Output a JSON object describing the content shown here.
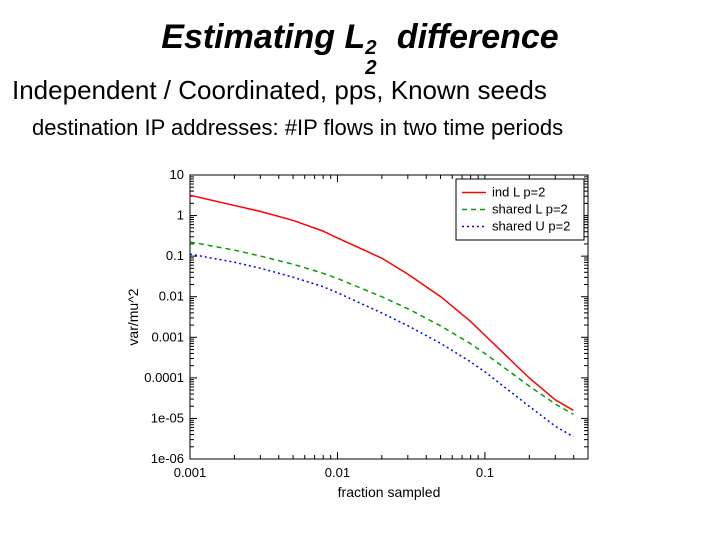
{
  "title_parts": {
    "prefix": "Estimating L",
    "sup": "2",
    "sub": "2",
    "suffix": " difference"
  },
  "subtitle": "Independent / Coordinated, pps, Known seeds",
  "subtext": "destination IP addresses: #IP flows  in two time periods",
  "chart": {
    "type": "line",
    "xlabel": "fraction sampled",
    "ylabel": "var/mu^2",
    "label_fontsize": 14,
    "tick_fontsize": 13,
    "x_scale": "log",
    "y_scale": "log",
    "xlim_log10": [
      -3,
      -0.301
    ],
    "ylim_log10": [
      -6,
      1
    ],
    "x_ticks": [
      {
        "log10": -3,
        "label": "0.001"
      },
      {
        "log10": -2,
        "label": "0.01"
      },
      {
        "log10": -1,
        "label": "0.1"
      }
    ],
    "y_ticks": [
      {
        "log10": 1,
        "label": "10"
      },
      {
        "log10": 0,
        "label": "1"
      },
      {
        "log10": -1,
        "label": "0.1"
      },
      {
        "log10": -2,
        "label": "0.01"
      },
      {
        "log10": -3,
        "label": "0.001"
      },
      {
        "log10": -4,
        "label": "0.0001"
      },
      {
        "log10": -5,
        "label": "1e-05"
      },
      {
        "log10": -6,
        "label": "1e-06"
      }
    ],
    "background_color": "#ffffff",
    "axis_color": "#000000",
    "line_width": 1.5,
    "legend": {
      "position": "top-right",
      "border_color": "#000000",
      "bg_color": "#ffffff",
      "fontsize": 13
    },
    "series": [
      {
        "name": "ind L p=2",
        "color": "#ff0000",
        "dash": "solid",
        "points_log10": [
          [
            -3.0,
            0.5
          ],
          [
            -2.7,
            0.25
          ],
          [
            -2.52,
            0.1
          ],
          [
            -2.3,
            -0.12
          ],
          [
            -2.1,
            -0.38
          ],
          [
            -2.0,
            -0.55
          ],
          [
            -1.7,
            -1.05
          ],
          [
            -1.52,
            -1.45
          ],
          [
            -1.3,
            -2.0
          ],
          [
            -1.1,
            -2.6
          ],
          [
            -1.0,
            -2.95
          ],
          [
            -0.7,
            -4.0
          ],
          [
            -0.52,
            -4.55
          ],
          [
            -0.4,
            -4.8
          ]
        ]
      },
      {
        "name": "shared L p=2",
        "color": "#00a000",
        "dash": "5,4",
        "points_log10": [
          [
            -3.0,
            -0.65
          ],
          [
            -2.7,
            -0.85
          ],
          [
            -2.52,
            -1.0
          ],
          [
            -2.3,
            -1.2
          ],
          [
            -2.1,
            -1.42
          ],
          [
            -2.0,
            -1.55
          ],
          [
            -1.7,
            -2.0
          ],
          [
            -1.52,
            -2.3
          ],
          [
            -1.3,
            -2.72
          ],
          [
            -1.1,
            -3.15
          ],
          [
            -1.0,
            -3.4
          ],
          [
            -0.7,
            -4.2
          ],
          [
            -0.52,
            -4.65
          ],
          [
            -0.4,
            -4.9
          ]
        ]
      },
      {
        "name": "shared U p=2",
        "color": "#0000ff",
        "dash": "2,3",
        "points_log10": [
          [
            -3.0,
            -0.95
          ],
          [
            -2.7,
            -1.15
          ],
          [
            -2.52,
            -1.3
          ],
          [
            -2.3,
            -1.52
          ],
          [
            -2.1,
            -1.75
          ],
          [
            -2.0,
            -1.9
          ],
          [
            -1.7,
            -2.4
          ],
          [
            -1.52,
            -2.72
          ],
          [
            -1.3,
            -3.15
          ],
          [
            -1.1,
            -3.6
          ],
          [
            -1.0,
            -3.85
          ],
          [
            -0.7,
            -4.7
          ],
          [
            -0.52,
            -5.2
          ],
          [
            -0.4,
            -5.45
          ]
        ]
      }
    ]
  }
}
